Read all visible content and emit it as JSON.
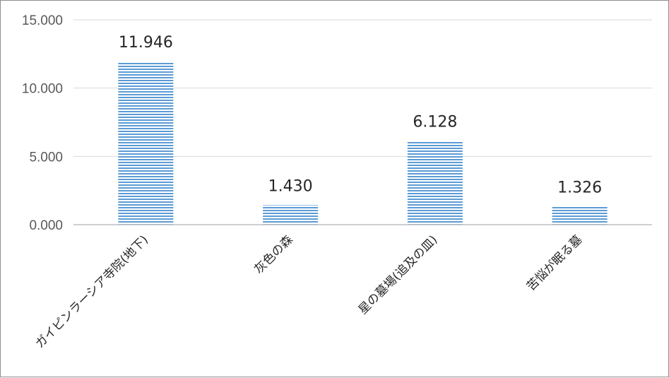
{
  "chart_data": {
    "type": "bar",
    "categories": [
      "ガイピンラーシア寺院(地下)",
      "灰色の森",
      "星の墓場(追及の皿)",
      "苦悩が眠る墓"
    ],
    "values": [
      11.946,
      1.43,
      6.128,
      1.326
    ],
    "value_labels": [
      "11.946",
      "1.430",
      "6.128",
      "1.326"
    ],
    "yticks": [
      "0.000",
      "5.000",
      "10.000",
      "15.000"
    ],
    "ytick_values": [
      0,
      5,
      10,
      15
    ],
    "ylim": [
      0,
      15
    ],
    "grid": true,
    "title": "",
    "xlabel": "",
    "ylabel": "",
    "colors": {
      "bar": "#5b9bd5",
      "bar_stripe": "#ffffff",
      "grid": "#d9d9d9",
      "axis": "#bfbfbf"
    }
  }
}
